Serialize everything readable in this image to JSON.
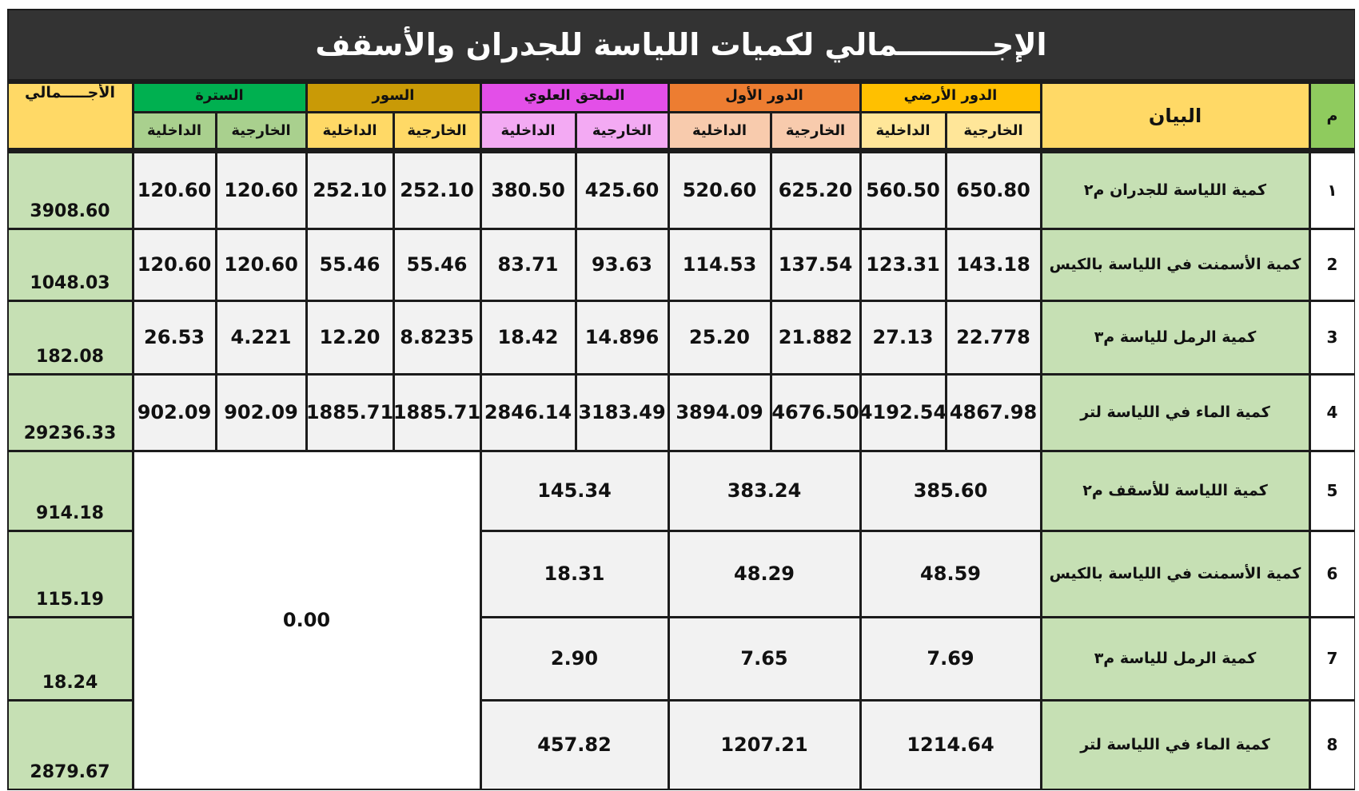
{
  "title": "الإجـــــــــمالي لكميات اللياسة للجدران والأسقف",
  "table": {
    "header": {
      "index": "م",
      "label": "البيان",
      "total": "الأجـــــمالي",
      "groups": [
        {
          "name": "الدور الأرضي",
          "sub": [
            "الخارجية",
            "الداخلية"
          ]
        },
        {
          "name": "الدور الأول",
          "sub": [
            "الخارجية",
            "الداخلية"
          ]
        },
        {
          "name": "الملحق العلوي",
          "sub": [
            "الخارجية",
            "الداخلية"
          ]
        },
        {
          "name": "السور",
          "sub": [
            "الخارجية",
            "الداخلية"
          ]
        },
        {
          "name": "السترة",
          "sub": [
            "الخارجية",
            "الداخلية"
          ]
        }
      ]
    },
    "rows": [
      {
        "index": "١",
        "label": "كمية اللياسة للجدران م٢",
        "values": [
          "650.80",
          "560.50",
          "625.20",
          "520.60",
          "425.60",
          "380.50",
          "252.10",
          "252.10",
          "120.60",
          "120.60"
        ],
        "total": "3908.60"
      },
      {
        "index": "2",
        "label": "كمية الأسمنت في اللياسة بالكيس",
        "values": [
          "143.18",
          "123.31",
          "137.54",
          "114.53",
          "93.63",
          "83.71",
          "55.46",
          "55.46",
          "120.60",
          "120.60"
        ],
        "total": "1048.03"
      },
      {
        "index": "3",
        "label": "كمية الرمل للياسة م٣",
        "values": [
          "22.778",
          "27.13",
          "21.882",
          "25.20",
          "14.896",
          "18.42",
          "8.8235",
          "12.20",
          "4.221",
          "26.53"
        ],
        "total": "182.08"
      },
      {
        "index": "4",
        "label": "كمية الماء في اللياسة لتر",
        "values": [
          "4867.98",
          "4192.54",
          "4676.50",
          "3894.09",
          "3183.49",
          "2846.14",
          "1885.71",
          "1885.71",
          "902.09",
          "902.09"
        ],
        "total": "29236.33"
      },
      {
        "index": "5",
        "label": "كمية اللياسة للأسقف م٢",
        "values": [
          "385.60",
          "383.24",
          "145.34"
        ],
        "total": "914.18"
      },
      {
        "index": "6",
        "label": "كمية الأسمنت في اللياسة بالكيس",
        "values": [
          "48.59",
          "48.29",
          "18.31"
        ],
        "total": "115.19"
      },
      {
        "index": "7",
        "label": "كمية الرمل للياسة م٣",
        "values": [
          "7.69",
          "7.65",
          "2.90"
        ],
        "total": "18.24"
      },
      {
        "index": "8",
        "label": "كمية الماء في اللياسة لتر",
        "values": [
          "1214.64",
          "1207.21",
          "457.82"
        ],
        "total": "2879.67"
      }
    ],
    "merged_value": "0.00"
  }
}
